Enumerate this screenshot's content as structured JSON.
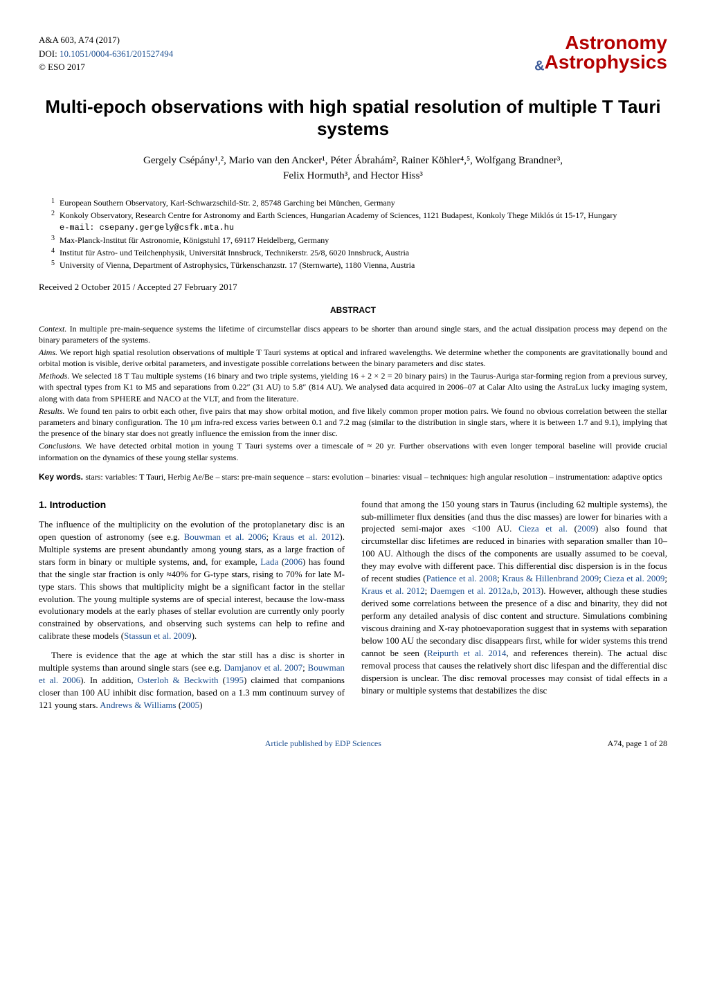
{
  "header": {
    "journal_ref": "A&A 603, A74 (2017)",
    "doi_prefix": "DOI: ",
    "doi": "10.1051/0004-6361/201527494",
    "copyright": "© ESO 2017",
    "logo_top": "Astronomy",
    "logo_amp": "&",
    "logo_bottom": "Astrophysics"
  },
  "title": "Multi-epoch observations with high spatial resolution of multiple T Tauri systems",
  "authors_line1": "Gergely Csépány¹,², Mario van den Ancker¹, Péter Ábrahám², Rainer Köhler⁴,⁵, Wolfgang Brandner³,",
  "authors_line2": "Felix Hormuth³, and Hector Hiss³",
  "affiliations": [
    {
      "n": "1",
      "text": "European Southern Observatory, Karl-Schwarzschild-Str. 2, 85748 Garching bei München, Germany"
    },
    {
      "n": "2",
      "text": "Konkoly Observatory, Research Centre for Astronomy and Earth Sciences, Hungarian Academy of Sciences, 1121 Budapest, Konkoly Thege Miklós út 15-17, Hungary"
    },
    {
      "n": "",
      "text": "e-mail: csepany.gergely@csfk.mta.hu",
      "mono": true
    },
    {
      "n": "3",
      "text": "Max-Planck-Institut für Astronomie, Königstuhl 17, 69117 Heidelberg, Germany"
    },
    {
      "n": "4",
      "text": "Institut für Astro- und Teilchenphysik, Universität Innsbruck, Technikerstr. 25/8, 6020 Innsbruck, Austria"
    },
    {
      "n": "5",
      "text": "University of Vienna, Department of Astrophysics, Türkenschanzstr. 17 (Sternwarte), 1180 Vienna, Austria"
    }
  ],
  "dates": "Received 2 October 2015 / Accepted 27 February 2017",
  "abstract": {
    "heading": "ABSTRACT",
    "paras": [
      {
        "label": "Context.",
        "text": " In multiple pre-main-sequence systems the lifetime of circumstellar discs appears to be shorter than around single stars, and the actual dissipation process may depend on the binary parameters of the systems."
      },
      {
        "label": "Aims.",
        "text": " We report high spatial resolution observations of multiple T Tauri systems at optical and infrared wavelengths. We determine whether the components are gravitationally bound and orbital motion is visible, derive orbital parameters, and investigate possible correlations between the binary parameters and disc states."
      },
      {
        "label": "Methods.",
        "text": " We selected 18 T Tau multiple systems (16 binary and two triple systems, yielding 16 + 2 × 2 = 20 binary pairs) in the Taurus-Auriga star-forming region from a previous survey, with spectral types from K1 to M5 and separations from 0.22″ (31 AU) to 5.8″ (814 AU). We analysed data acquired in 2006–07 at Calar Alto using the AstraLux lucky imaging system, along with data from SPHERE and NACO at the VLT, and from the literature."
      },
      {
        "label": "Results.",
        "text": " We found ten pairs to orbit each other, five pairs that may show orbital motion, and five likely common proper motion pairs. We found no obvious correlation between the stellar parameters and binary configuration. The 10 μm infra-red excess varies between 0.1 and 7.2 mag (similar to the distribution in single stars, where it is between 1.7 and 9.1), implying that the presence of the binary star does not greatly influence the emission from the inner disc."
      },
      {
        "label": "Conclusions.",
        "text": " We have detected orbital motion in young T Tauri systems over a timescale of ≈ 20 yr. Further observations with even longer temporal baseline will provide crucial information on the dynamics of these young stellar systems."
      }
    ]
  },
  "keywords": {
    "label": "Key words. ",
    "text": "stars: variables: T Tauri, Herbig Ae/Be – stars: pre-main sequence – stars: evolution – binaries: visual – techniques: high angular resolution – instrumentation: adaptive optics"
  },
  "section_heading": "1. Introduction",
  "col_left": {
    "p1a": "The influence of the multiplicity on the evolution of the protoplanetary disc is an open question of astronomy (see e.g. ",
    "c1": "Bouwman et al. 2006",
    "p1b": "; ",
    "c2": "Kraus et al. 2012",
    "p1c": "). Multiple systems are present abundantly among young stars, as a large fraction of stars form in binary or multiple systems, and, for example, ",
    "c3": "Lada",
    "p1d": " (",
    "c4": "2006",
    "p1e": ") has found that the single star fraction is only ≈40% for G-type stars, rising to 70% for late M-type stars. This shows that multiplicity might be a significant factor in the stellar evolution. The young multiple systems are of special interest, because the low-mass evolutionary models at the early phases of stellar evolution are currently only poorly constrained by observations, and observing such systems can help to refine and calibrate these models (",
    "c5": "Stassun et al. 2009",
    "p1f": ").",
    "p2a": "There is evidence that the age at which the star still has a disc is shorter in multiple systems than around single stars (see e.g. ",
    "c6": "Damjanov et al. 2007",
    "p2b": "; ",
    "c7": "Bouwman et al. 2006",
    "p2c": "). In addition, ",
    "c8": "Osterloh & Beckwith",
    "p2d": " (",
    "c9": "1995",
    "p2e": ") claimed that companions closer than 100 AU inhibit disc formation, based on a 1.3 mm continuum survey of 121 young stars. ",
    "c10": "Andrews & Williams",
    "p2f": " (",
    "c11": "2005",
    "p2g": ")"
  },
  "col_right": {
    "p1a": "found that among the 150 young stars in Taurus (including 62 multiple systems), the sub-millimeter flux densities (and thus the disc masses) are lower for binaries with a projected semi-major axes <100 AU. ",
    "c1": "Cieza et al.",
    "p1b": " (",
    "c2": "2009",
    "p1c": ") also found that circumstellar disc lifetimes are reduced in binaries with separation smaller than 10–100 AU. Although the discs of the components are usually assumed to be coeval, they may evolve with different pace. This differential disc dispersion is in the focus of recent studies (",
    "c3": "Patience et al. 2008",
    "p1d": "; ",
    "c4": "Kraus & Hillenbrand 2009",
    "p1e": "; ",
    "c5": "Cieza et al. 2009",
    "p1f": "; ",
    "c6": "Kraus et al. 2012",
    "p1g": "; ",
    "c7": "Daemgen et al. 2012a",
    "p1h": ",",
    "c8": "b",
    "p1i": ", ",
    "c9": "2013",
    "p1j": "). However, although these studies derived some correlations between the presence of a disc and binarity, they did not perform any detailed analysis of disc content and structure. Simulations combining viscous draining and X-ray photoevaporation suggest that in systems with separation below 100 AU the secondary disc disappears first, while for wider systems this trend cannot be seen (",
    "c10": "Reipurth et al. 2014",
    "p1k": ", and references therein). The actual disc removal process that causes the relatively short disc lifespan and the differential disc dispersion is unclear. The disc removal processes may consist of tidal effects in a binary or multiple systems that destabilizes the disc"
  },
  "footer": {
    "link": "Article published by EDP Sciences",
    "page": "A74, page 1 of 28"
  },
  "colors": {
    "link": "#1a4d8f",
    "logo_red": "#b30000",
    "logo_blue": "#3b5998",
    "text": "#000000",
    "background": "#ffffff"
  }
}
